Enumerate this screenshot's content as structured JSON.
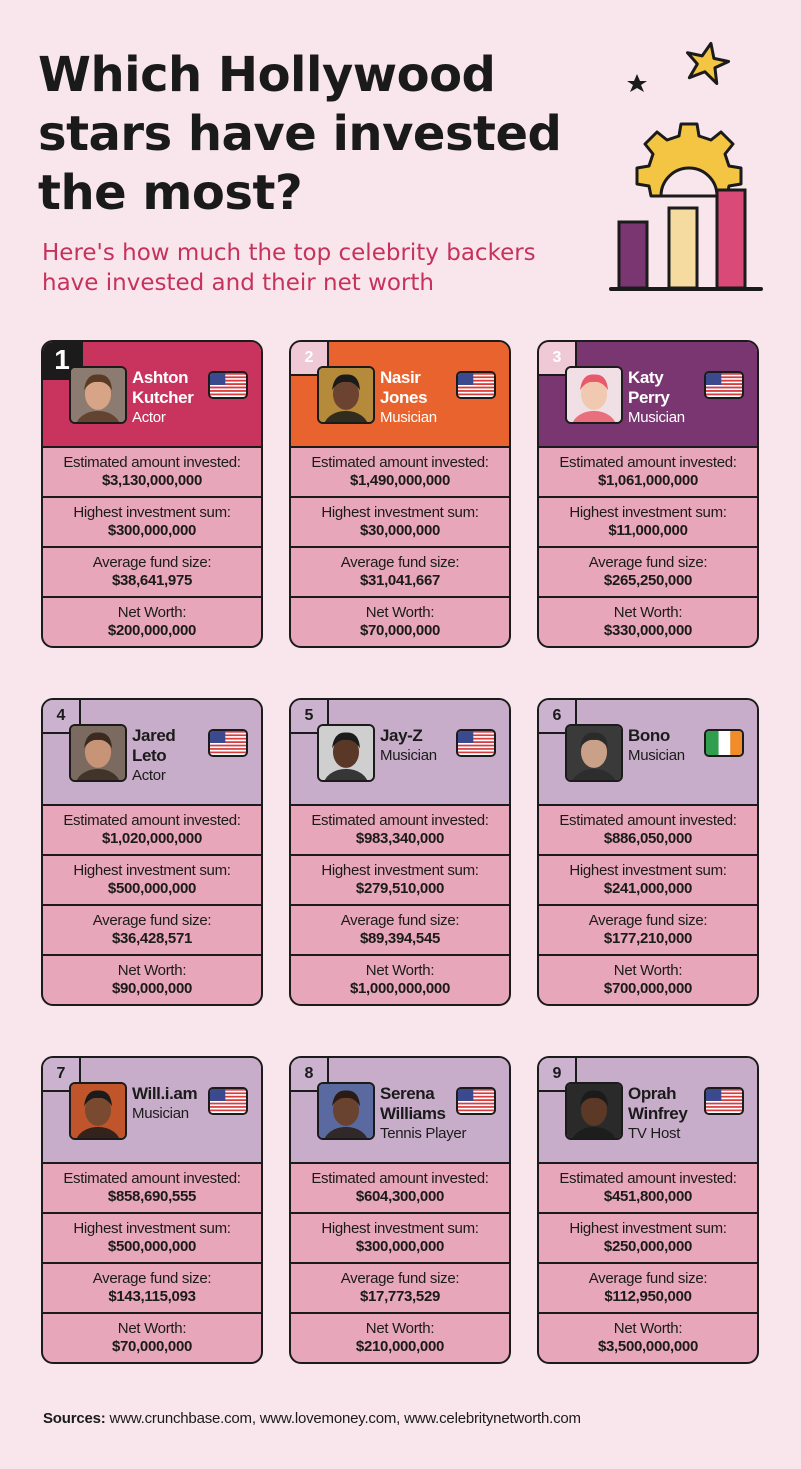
{
  "header": {
    "title": "Which Hollywood\nstars have invested\nthe most?",
    "subtitle": "Here's how much the top celebrity backers\nhave invested and their net worth"
  },
  "labels": {
    "invested": "Estimated amount invested:",
    "highest": "Highest investment sum:",
    "average": "Average fund size:",
    "networth": "Net Worth:"
  },
  "colors": {
    "background": "#f8e6ec",
    "card_body": "#e8a6bb",
    "crimson": "#c9345f",
    "orange": "#e9632f",
    "purple": "#7a3670",
    "lilac": "#c7adc9",
    "subtitle": "#c7325d"
  },
  "cards": [
    {
      "rank": "1",
      "name": "Ashton\nKutcher",
      "role": "Actor",
      "flag": "us-flag-icon",
      "invested": "$3,130,000,000",
      "highest": "$300,000,000",
      "average": "$38,641,975",
      "networth": "$200,000,000"
    },
    {
      "rank": "2",
      "name": "Nasir\nJones",
      "role": "Musician",
      "flag": "us-flag-icon",
      "invested": "$1,490,000,000",
      "highest": "$30,000,000",
      "average": "$31,041,667",
      "networth": "$70,000,000"
    },
    {
      "rank": "3",
      "name": "Katy\nPerry",
      "role": "Musician",
      "flag": "us-flag-icon",
      "invested": "$1,061,000,000",
      "highest": "$11,000,000",
      "average": "$265,250,000",
      "networth": "$330,000,000"
    },
    {
      "rank": "4",
      "name": "Jared\nLeto",
      "role": "Actor",
      "flag": "us-flag-icon",
      "invested": "$1,020,000,000",
      "highest": "$500,000,000",
      "average": "$36,428,571",
      "networth": "$90,000,000"
    },
    {
      "rank": "5",
      "name": "Jay-Z",
      "role": "Musician",
      "flag": "us-flag-icon",
      "invested": "$983,340,000",
      "highest": "$279,510,000",
      "average": "$89,394,545",
      "networth": "$1,000,000,000"
    },
    {
      "rank": "6",
      "name": "Bono",
      "role": "Musician",
      "flag": "ireland-flag-icon",
      "invested": "$886,050,000",
      "highest": "$241,000,000",
      "average": "$177,210,000",
      "networth": "$700,000,000"
    },
    {
      "rank": "7",
      "name": "Will.i.am",
      "role": "Musician",
      "flag": "us-flag-icon",
      "invested": "$858,690,555",
      "highest": "$500,000,000",
      "average": "$143,115,093",
      "networth": "$70,000,000"
    },
    {
      "rank": "8",
      "name": "Serena\nWilliams",
      "role": "Tennis Player",
      "flag": "us-flag-icon",
      "invested": "$604,300,000",
      "highest": "$300,000,000",
      "average": "$17,773,529",
      "networth": "$210,000,000"
    },
    {
      "rank": "9",
      "name": "Oprah\nWinfrey",
      "role": "TV Host",
      "flag": "us-flag-icon",
      "invested": "$451,800,000",
      "highest": "$250,000,000",
      "average": "$112,950,000",
      "networth": "$3,500,000,000"
    }
  ],
  "sources": {
    "label": "Sources:",
    "text": " www.crunchbase.com, www.lovemoney.com, www.celebritynetworth.com"
  }
}
